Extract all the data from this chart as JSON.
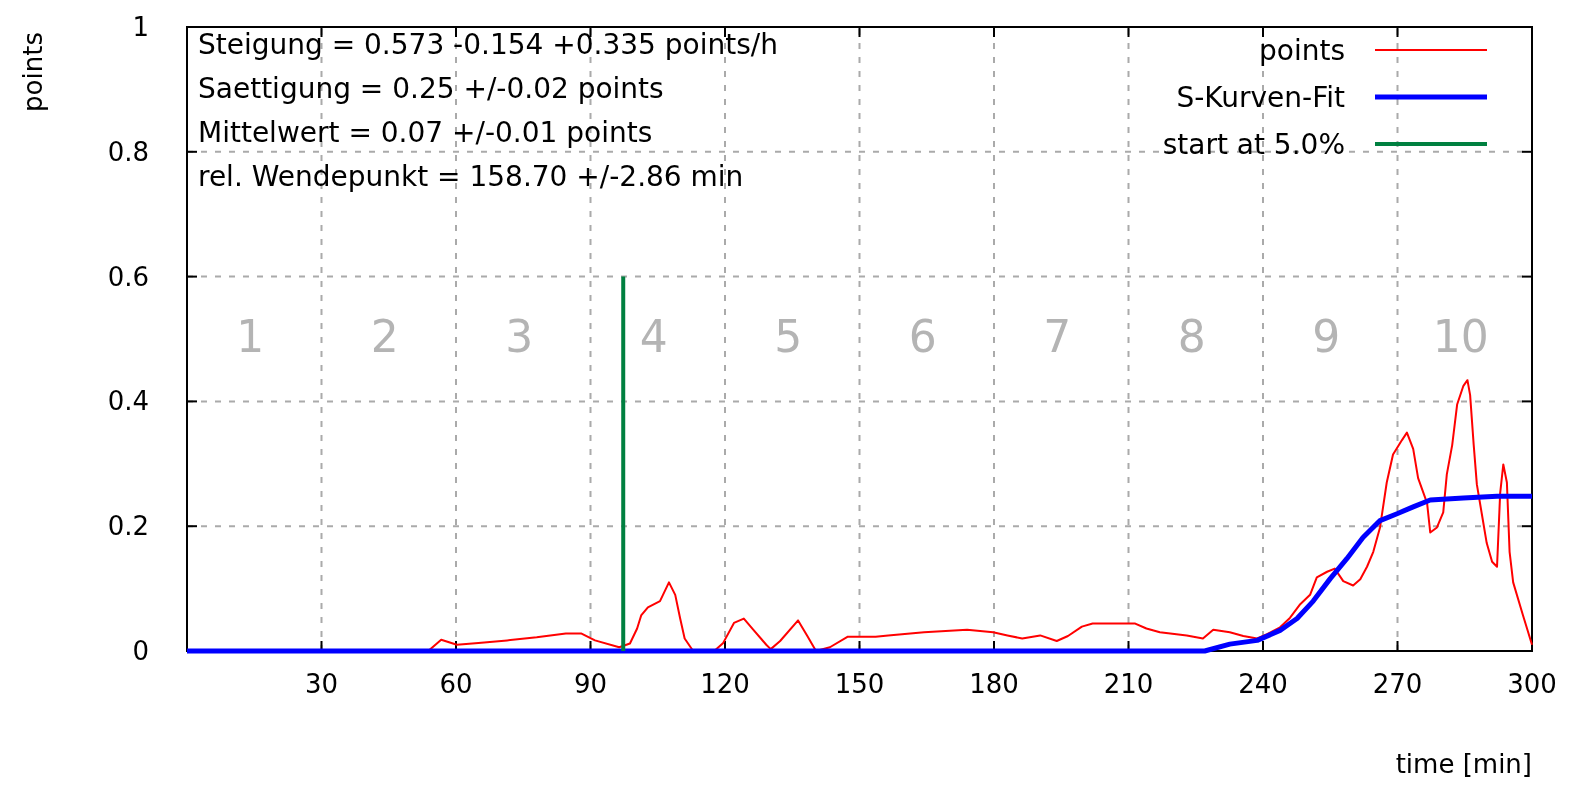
{
  "chart_data": {
    "type": "line",
    "ylabel": "points",
    "xlabel": "time [min]",
    "xlim": [
      0,
      300
    ],
    "xticks": [
      30,
      60,
      90,
      120,
      150,
      180,
      210,
      240,
      270,
      300
    ],
    "ylim": [
      0,
      1
    ],
    "yticks": [
      0,
      0.2,
      0.4,
      0.6,
      0.8,
      1
    ],
    "grid": true,
    "legend": "top right",
    "line_style": "solid",
    "marker": "none",
    "series": [
      {
        "name": "points",
        "color": "#ff0000",
        "x": [
          0,
          53.8,
          56.7,
          60.2,
          65,
          71.4,
          78,
          84.5,
          88,
          91,
          96.4,
          98.8,
          100.4,
          101.3,
          102.8,
          105.5,
          107.5,
          108.9,
          110,
          111,
          112.9,
          117.6,
          119.6,
          122,
          124.2,
          126.1,
          129.2,
          130.2,
          132.3,
          136.3,
          138.3,
          140.3,
          143.4,
          147.4,
          153.6,
          156.4,
          164.4,
          174,
          179.8,
          183,
          186.3,
          190.3,
          194,
          196.5,
          199.6,
          202,
          211.5,
          214,
          217,
          223,
          226.6,
          228.9,
          232.6,
          235.6,
          238.7,
          240.9,
          243.8,
          246,
          248.3,
          250.5,
          252,
          254.3,
          256,
          257.9,
          260.1,
          261.7,
          263.2,
          264.6,
          266.1,
          267.6,
          269,
          271,
          272.1,
          273.5,
          274.6,
          276.6,
          277.3,
          278.8,
          280.2,
          281,
          282.2,
          283.3,
          284.7,
          285.6,
          286.2,
          287,
          287.7,
          288.8,
          289.9,
          291.1,
          292.2,
          292.9,
          293.6,
          294.4,
          295,
          295.8,
          298,
          300
        ],
        "values": [
          0,
          0,
          0.018,
          0.01,
          0.013,
          0.017,
          0.022,
          0.028,
          0.028,
          0.017,
          0.006,
          0.012,
          0.036,
          0.057,
          0.07,
          0.08,
          0.11,
          0.09,
          0.052,
          0.02,
          0,
          0,
          0.013,
          0.045,
          0.052,
          0.036,
          0.01,
          0.003,
          0.016,
          0.049,
          0.025,
          0,
          0.006,
          0.023,
          0.023,
          0.025,
          0.03,
          0.034,
          0.03,
          0.025,
          0.02,
          0.025,
          0.016,
          0.024,
          0.039,
          0.044,
          0.044,
          0.036,
          0.03,
          0.025,
          0.02,
          0.034,
          0.03,
          0.024,
          0.02,
          0.027,
          0.038,
          0.053,
          0.075,
          0.09,
          0.118,
          0.127,
          0.132,
          0.112,
          0.105,
          0.115,
          0.135,
          0.159,
          0.198,
          0.27,
          0.315,
          0.338,
          0.35,
          0.324,
          0.277,
          0.237,
          0.19,
          0.198,
          0.222,
          0.283,
          0.33,
          0.395,
          0.425,
          0.434,
          0.41,
          0.33,
          0.267,
          0.22,
          0.173,
          0.143,
          0.135,
          0.253,
          0.299,
          0.27,
          0.159,
          0.11,
          0.057,
          0.01
        ]
      },
      {
        "name": "S-Kurven-Fit",
        "color": "#0000ff",
        "x": [
          0,
          227,
          232.6,
          238.7,
          243.8,
          247.6,
          251.2,
          255,
          258.7,
          262.3,
          266.1,
          269.9,
          273.5,
          277.3,
          284.7,
          292.2,
          300
        ],
        "values": [
          0,
          0,
          0.011,
          0.017,
          0.033,
          0.052,
          0.08,
          0.116,
          0.148,
          0.182,
          0.209,
          0.22,
          0.231,
          0.242,
          0.245,
          0.248,
          0.248
        ]
      },
      {
        "name": "start at 5.0%",
        "color": "#008040",
        "x": [
          97.3,
          97.3
        ],
        "values": [
          0,
          0.6
        ]
      }
    ],
    "annotations": [
      "Steigung = 0.573 -0.154 +0.335 points/h",
      "Saettigung = 0.25 +/-0.02 points",
      "Mittelwert = 0.07 +/-0.01 points",
      "rel. Wendepunkt = 158.70 +/-2.86 min",
      "1",
      "2",
      "3",
      "4",
      "5",
      "6",
      "7",
      "8",
      "9",
      "10"
    ]
  }
}
